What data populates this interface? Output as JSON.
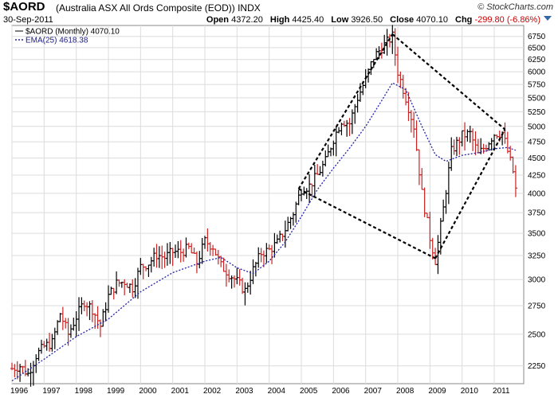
{
  "header": {
    "ticker": "$AORD",
    "name": "(Australia ASX All Ords Composite (EOD))",
    "exchange": "INDX",
    "credit": "© StockCharts.com",
    "date": "30-Sep-2011",
    "open_label": "Open",
    "open": "4372.20",
    "high_label": "High",
    "high": "4425.40",
    "low_label": "Low",
    "low": "3926.50",
    "close_label": "Close",
    "close": "4070.10",
    "chg_label": "Chg",
    "chg": "-299.80 (-6.86%)",
    "dropdown_icon": "chevron-down-icon"
  },
  "legend": {
    "main": "$AORD (Monthly) 4070.10",
    "ema": "EMA(25) 4618.38"
  },
  "colors": {
    "up": "#000000",
    "down": "#cc2222",
    "ema": "#2222aa",
    "grid": "#dcdcdc",
    "background": "#ffffff",
    "border": "#888888",
    "trendlines": "#000000"
  },
  "chart_data": {
    "type": "ohlc",
    "scale": "log",
    "ylim": [
      2120,
      7000
    ],
    "xlim": [
      "1996-01",
      "2011-12"
    ],
    "y_ticks": [
      2250,
      2500,
      2750,
      3000,
      3250,
      3500,
      3750,
      4000,
      4250,
      4500,
      4750,
      5000,
      5250,
      5500,
      5750,
      6000,
      6250,
      6500,
      6750
    ],
    "x_ticks": [
      "1996",
      "1997",
      "1998",
      "1999",
      "2000",
      "2001",
      "2002",
      "2003",
      "2004",
      "2005",
      "2006",
      "2007",
      "2008",
      "2009",
      "2010",
      "2011"
    ],
    "grid": true,
    "legend_position": "top-left",
    "price_series": [
      [
        "1996-01",
        2230
      ],
      [
        "1996-04",
        2250
      ],
      [
        "1996-07",
        2190
      ],
      [
        "1996-10",
        2330
      ],
      [
        "1997-01",
        2400
      ],
      [
        "1997-04",
        2430
      ],
      [
        "1997-07",
        2680
      ],
      [
        "1997-10",
        2500
      ],
      [
        "1998-01",
        2650
      ],
      [
        "1998-04",
        2790
      ],
      [
        "1998-07",
        2720
      ],
      [
        "1998-10",
        2570
      ],
      [
        "1999-01",
        2840
      ],
      [
        "1999-04",
        2960
      ],
      [
        "1999-07",
        2980
      ],
      [
        "1999-10",
        2920
      ],
      [
        "2000-01",
        3130
      ],
      [
        "2000-04",
        3170
      ],
      [
        "2000-07",
        3260
      ],
      [
        "2000-10",
        3230
      ],
      [
        "2001-01",
        3290
      ],
      [
        "2001-04",
        3290
      ],
      [
        "2001-07",
        3330
      ],
      [
        "2001-10",
        3170
      ],
      [
        "2002-01",
        3410
      ],
      [
        "2002-04",
        3350
      ],
      [
        "2002-07",
        3140
      ],
      [
        "2002-10",
        3060
      ],
      [
        "2003-01",
        2980
      ],
      [
        "2003-04",
        2890
      ],
      [
        "2003-07",
        3100
      ],
      [
        "2003-10",
        3280
      ],
      [
        "2004-01",
        3310
      ],
      [
        "2004-04",
        3390
      ],
      [
        "2004-07",
        3550
      ],
      [
        "2004-10",
        3750
      ],
      [
        "2005-01",
        4060
      ],
      [
        "2005-04",
        4100
      ],
      [
        "2005-07",
        4250
      ],
      [
        "2005-10",
        4450
      ],
      [
        "2006-01",
        4800
      ],
      [
        "2006-04",
        5100
      ],
      [
        "2006-07",
        5050
      ],
      [
        "2006-10",
        5500
      ],
      [
        "2007-01",
        5850
      ],
      [
        "2007-04",
        6300
      ],
      [
        "2007-07",
        6500
      ],
      [
        "2007-11",
        6750
      ],
      [
        "2008-01",
        6000
      ],
      [
        "2008-04",
        5500
      ],
      [
        "2008-07",
        5000
      ],
      [
        "2008-10",
        4000
      ],
      [
        "2009-01",
        3450
      ],
      [
        "2009-03",
        3200
      ],
      [
        "2009-06",
        3800
      ],
      [
        "2009-09",
        4600
      ],
      [
        "2010-01",
        4850
      ],
      [
        "2010-04",
        4880
      ],
      [
        "2010-07",
        4550
      ],
      [
        "2010-10",
        4700
      ],
      [
        "2011-01",
        4880
      ],
      [
        "2011-04",
        4900
      ],
      [
        "2011-06",
        4600
      ],
      [
        "2011-08",
        4300
      ],
      [
        "2011-09",
        4070
      ]
    ],
    "ema_series": [
      [
        "1996-01",
        2140
      ],
      [
        "1997-01",
        2300
      ],
      [
        "1998-01",
        2480
      ],
      [
        "1999-01",
        2630
      ],
      [
        "2000-01",
        2880
      ],
      [
        "2001-01",
        3070
      ],
      [
        "2002-01",
        3190
      ],
      [
        "2002-07",
        3230
      ],
      [
        "2003-01",
        3120
      ],
      [
        "2003-07",
        3060
      ],
      [
        "2004-01",
        3190
      ],
      [
        "2004-07",
        3400
      ],
      [
        "2005-01",
        3700
      ],
      [
        "2005-07",
        4050
      ],
      [
        "2006-01",
        4350
      ],
      [
        "2006-07",
        4650
      ],
      [
        "2007-01",
        5000
      ],
      [
        "2007-07",
        5450
      ],
      [
        "2007-11",
        5780
      ],
      [
        "2008-04",
        5650
      ],
      [
        "2008-10",
        5000
      ],
      [
        "2009-03",
        4550
      ],
      [
        "2009-07",
        4450
      ],
      [
        "2010-01",
        4540
      ],
      [
        "2010-07",
        4580
      ],
      [
        "2011-01",
        4640
      ],
      [
        "2011-06",
        4660
      ],
      [
        "2011-09",
        4618
      ]
    ],
    "trendlines": [
      [
        [
          "2004-12",
          4060
        ],
        [
          "2007-11",
          6800
        ]
      ],
      [
        [
          "2007-11",
          6800
        ],
        [
          "2011-05",
          4950
        ]
      ],
      [
        [
          "2004-12",
          4060
        ],
        [
          "2009-03",
          3220
        ]
      ],
      [
        [
          "2009-03",
          3220
        ],
        [
          "2011-05",
          4950
        ]
      ]
    ]
  }
}
